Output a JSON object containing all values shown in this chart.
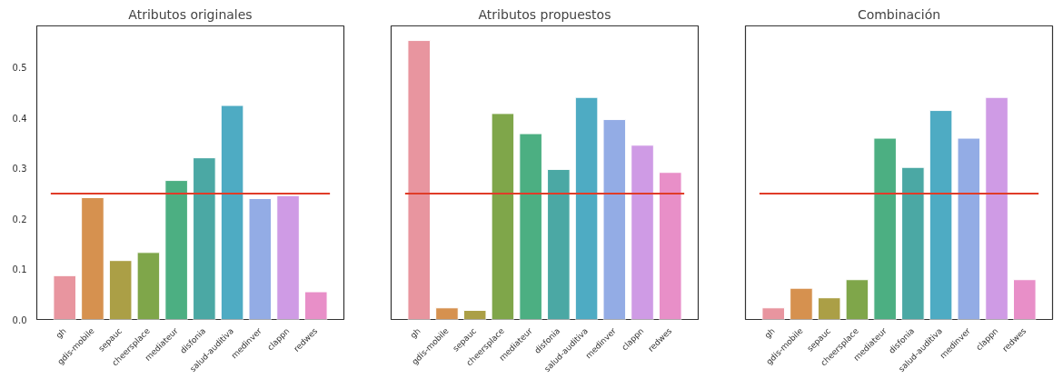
{
  "chart_data": [
    {
      "type": "bar",
      "title": "Atributos originales",
      "categories": [
        "gh",
        "gdis-mobile",
        "sepauc",
        "cheersplace",
        "mediateur",
        "disfonia",
        "salud-auditiva",
        "medinver",
        "clappn",
        "redwes"
      ],
      "values": [
        0.087,
        0.242,
        0.117,
        0.133,
        0.276,
        0.321,
        0.425,
        0.24,
        0.246,
        0.055
      ],
      "colors": [
        "#e8959f",
        "#d6914f",
        "#ab9f46",
        "#7fa64a",
        "#4caf82",
        "#4ba8a4",
        "#4eabc3",
        "#93ace5",
        "#cf9be5",
        "#e88fc8"
      ],
      "ylim": [
        0,
        0.583
      ],
      "yticks": [
        {
          "value": 0,
          "label": "0.0"
        },
        0.1,
        0.2,
        0.3,
        0.4,
        0.5
      ],
      "ref_lines": [
        {
          "axis": "y",
          "value": 0.25,
          "color": "#e03c28"
        }
      ],
      "grid": false
    },
    {
      "type": "bar",
      "title": "Atributos propuestos",
      "categories": [
        "gh",
        "gdis-mobile",
        "sepauc",
        "cheersplace",
        "mediateur",
        "disfonia",
        "salud-auditiva",
        "medinver",
        "clappn",
        "redwes"
      ],
      "values": [
        0.554,
        0.023,
        0.018,
        0.409,
        0.369,
        0.298,
        0.441,
        0.397,
        0.346,
        0.292
      ],
      "colors": [
        "#e8959f",
        "#d6914f",
        "#ab9f46",
        "#7fa64a",
        "#4caf82",
        "#4ba8a4",
        "#4eabc3",
        "#93ace5",
        "#cf9be5",
        "#e88fc8"
      ],
      "ylim": [
        0,
        0.583
      ],
      "tick_labels": "x",
      "ref_lines": [
        {
          "axis": "y",
          "value": 0.25,
          "color": "#e03c28"
        }
      ],
      "grid": false
    },
    {
      "type": "bar",
      "title": "Combinación",
      "categories": [
        "gh",
        "gdis-mobile",
        "sepauc",
        "cheersplace",
        "mediateur",
        "disfonia",
        "salud-auditiva",
        "medinver",
        "clappn",
        "redwes"
      ],
      "values": [
        0.023,
        0.062,
        0.043,
        0.079,
        0.36,
        0.302,
        0.415,
        0.36,
        0.441,
        0.079
      ],
      "colors": [
        "#e8959f",
        "#d6914f",
        "#ab9f46",
        "#7fa64a",
        "#4caf82",
        "#4ba8a4",
        "#4eabc3",
        "#93ace5",
        "#cf9be5",
        "#e88fc8"
      ],
      "ylim": [
        0,
        0.583
      ],
      "tick_labels": "x",
      "ref_lines": [
        {
          "axis": "y",
          "value": 0.25,
          "color": "#e03c28"
        }
      ],
      "grid": false
    }
  ]
}
